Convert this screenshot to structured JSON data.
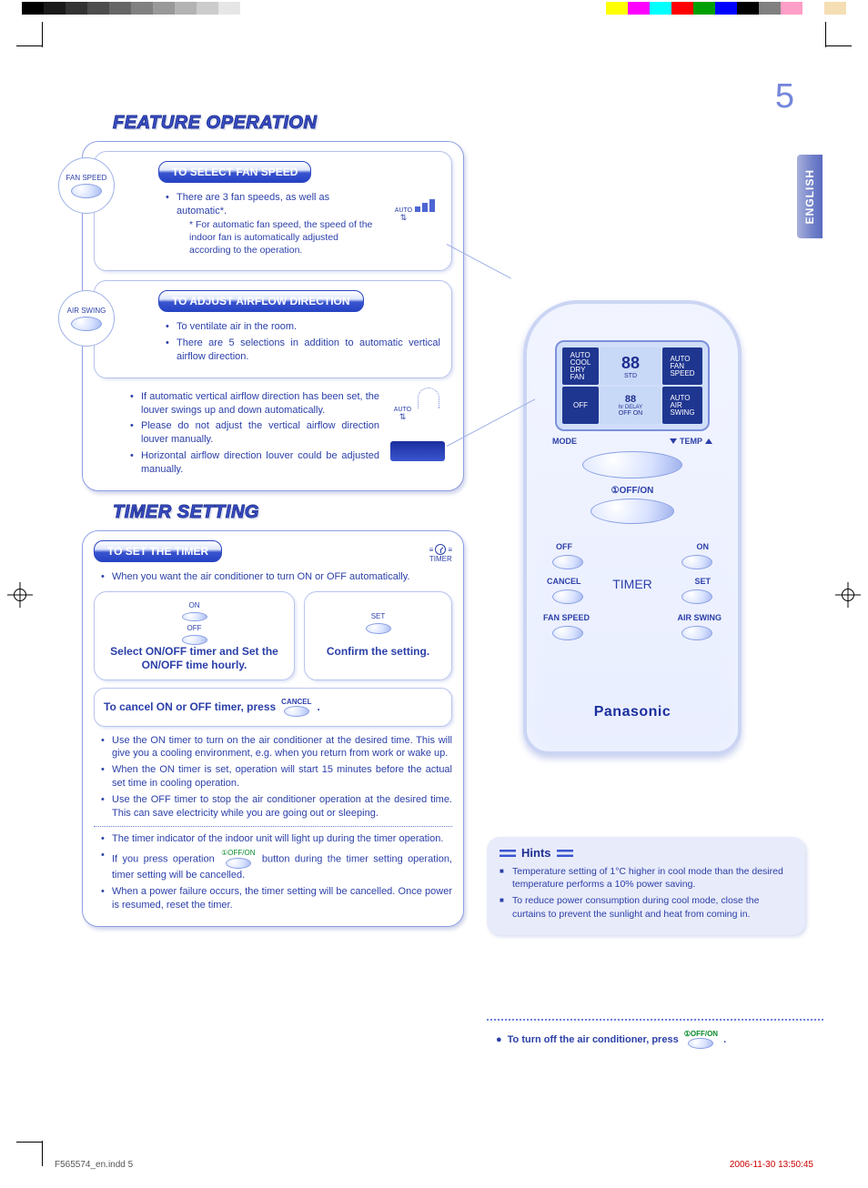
{
  "print": {
    "left_greys": [
      "#000000",
      "#1a1a1a",
      "#333333",
      "#4d4d4d",
      "#666666",
      "#808080",
      "#999999",
      "#b3b3b3",
      "#cccccc",
      "#e6e6e6"
    ],
    "right_colors": [
      "#ffff00",
      "#ff00ff",
      "#00ffff",
      "#ff0000",
      "#00a000",
      "#0000ff",
      "#000000",
      "#808080",
      "#ff9ec7",
      "#ffffff",
      "#f5deb3"
    ]
  },
  "language_tab": "ENGLISH",
  "sections": {
    "feature": "FEATURE OPERATION",
    "timer": "TIMER SETTING"
  },
  "fan_speed": {
    "button_label": "FAN SPEED",
    "pill": "TO SELECT FAN SPEED",
    "b1": "There are 3 fan speeds, as well as automatic*.",
    "sub": "* For automatic fan speed, the speed of the indoor fan is automatically adjusted according to the operation.",
    "auto_label": "AUTO"
  },
  "airflow": {
    "button_label": "AIR SWING",
    "pill": "TO ADJUST AIRFLOW DIRECTION",
    "b1": "To ventilate air in the room.",
    "b2": "There are 5 selections in addition to automatic vertical airflow direction.",
    "b3": "If automatic vertical airflow direction has been set, the louver swings up and down automatically.",
    "b4": "Please do not adjust the vertical airflow direction louver manually.",
    "b5": "Horizontal airflow direction louver could be adjusted manually.",
    "auto_label": "AUTO"
  },
  "timer": {
    "pill": "TO SET THE TIMER",
    "timer_word": "TIMER",
    "intro": "When you want the air conditioner to turn ON or OFF automatically.",
    "step1_on": "ON",
    "step1_off": "OFF",
    "step1_caption": "Select ON/OFF timer and Set the ON/OFF time hourly.",
    "step2_set": "SET",
    "step2_caption": "Confirm the setting.",
    "cancel_prefix": "To cancel ON or OFF timer, press",
    "cancel_btn": "CANCEL",
    "cancel_suffix": ".",
    "n1": "Use the ON timer to turn on the air conditioner at the desired time. This will give you a cooling environment, e.g. when you return from work or wake up.",
    "n2": "When the ON timer is set, operation will start 15 minutes before the actual set time in cooling operation.",
    "n3": "Use the OFF timer to stop the air conditioner operation at the desired time. This can save electricity while you are going out or sleeping.",
    "n4": "The timer indicator of the indoor unit will light up during the timer operation.",
    "n5_prefix": "If you press operation",
    "n5_btn": "①OFF/ON",
    "n5_suffix": "button during the timer setting operation, timer setting will be cancelled.",
    "n6": "When a power failure occurs, the timer setting will be cancelled. Once power is resumed, reset the timer."
  },
  "remote": {
    "modes": "AUTO\nCOOL\nDRY\nFAN",
    "mid_top": "STD",
    "mid_bot": "hr DELAY",
    "mid_row": "OFF ON",
    "right_top": "AUTO\nFAN\nSPEED",
    "right_bot": "AUTO\nAIR\nSWING",
    "off_pill": "OFF",
    "mode": "MODE",
    "temp": "TEMP",
    "offon": "①OFF/ON",
    "off": "OFF",
    "on": "ON",
    "cancel": "CANCEL",
    "timer": "TIMER",
    "set": "SET",
    "fanspeed": "FAN SPEED",
    "airswing": "AIR SWING",
    "brand": "Panasonic"
  },
  "hints": {
    "title": "Hints",
    "h1": "Temperature setting of 1°C higher in cool mode than the desired temperature performs a 10% power saving.",
    "h2": "To reduce power consumption during cool mode, close the curtains to prevent the sunlight and heat from coming in."
  },
  "turnoff": {
    "prefix": "To turn off the air conditioner, press",
    "btn": "①OFF/ON",
    "suffix": "."
  },
  "page_number": "5",
  "footer": {
    "file": "F565574_en.indd   5",
    "timestamp": "2006-11-30   13:50:45"
  }
}
